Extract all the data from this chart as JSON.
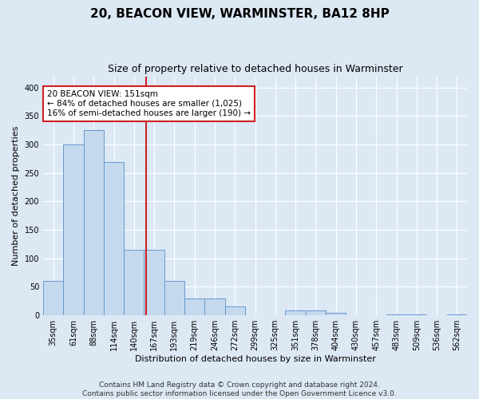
{
  "title": "20, BEACON VIEW, WARMINSTER, BA12 8HP",
  "subtitle": "Size of property relative to detached houses in Warminster",
  "xlabel": "Distribution of detached houses by size in Warminster",
  "ylabel": "Number of detached properties",
  "bins": [
    "35sqm",
    "61sqm",
    "88sqm",
    "114sqm",
    "140sqm",
    "167sqm",
    "193sqm",
    "219sqm",
    "246sqm",
    "272sqm",
    "299sqm",
    "325sqm",
    "351sqm",
    "378sqm",
    "404sqm",
    "430sqm",
    "457sqm",
    "483sqm",
    "509sqm",
    "536sqm",
    "562sqm"
  ],
  "values": [
    60,
    300,
    325,
    270,
    115,
    115,
    60,
    30,
    30,
    15,
    0,
    0,
    8,
    8,
    5,
    0,
    0,
    2,
    2,
    0,
    2
  ],
  "bar_color": "#c5d9ee",
  "bar_edge_color": "#6699cc",
  "red_line_x": 4.62,
  "annotation_line1": "20 BEACON VIEW: 151sqm",
  "annotation_line2": "← 84% of detached houses are smaller (1,025)",
  "annotation_line3": "16% of semi-detached houses are larger (190) →",
  "ylim": [
    0,
    420
  ],
  "yticks": [
    0,
    50,
    100,
    150,
    200,
    250,
    300,
    350,
    400
  ],
  "footer_line1": "Contains HM Land Registry data © Crown copyright and database right 2024.",
  "footer_line2": "Contains public sector information licensed under the Open Government Licence v3.0.",
  "background_color": "#dde8f5",
  "plot_background_color": "#dde8f5",
  "title_fontsize": 11,
  "subtitle_fontsize": 9,
  "ylabel_fontsize": 8,
  "xlabel_fontsize": 8,
  "tick_fontsize": 7,
  "annotation_fontsize": 7.5,
  "footer_fontsize": 6.5
}
